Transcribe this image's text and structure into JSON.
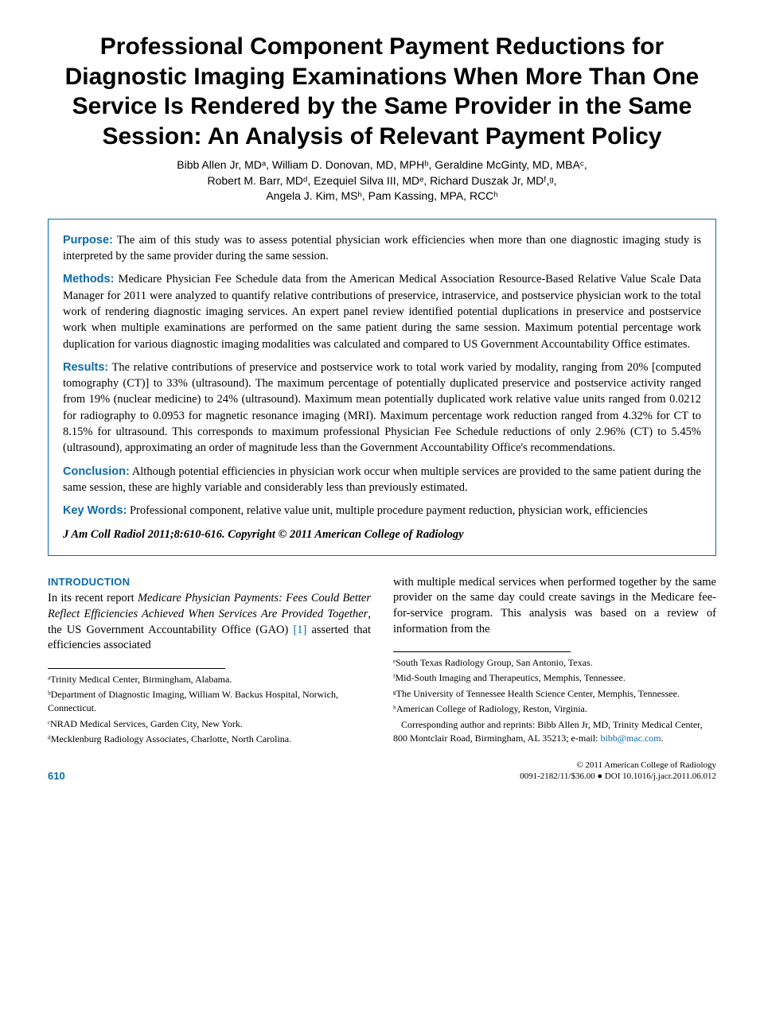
{
  "title": "Professional Component Payment Reductions for Diagnostic Imaging Examinations When More Than One Service Is Rendered by the Same Provider in the Same Session: An Analysis of Relevant Payment Policy",
  "authors_line1": "Bibb Allen Jr, MDᵃ, William D. Donovan, MD, MPHᵇ, Geraldine McGinty, MD, MBAᶜ,",
  "authors_line2": "Robert M. Barr, MDᵈ, Ezequiel Silva III, MDᵉ, Richard Duszak Jr, MDᶠ,ᵍ,",
  "authors_line3": "Angela J. Kim, MSʰ, Pam Kassing, MPA, RCCʰ",
  "abstract": {
    "purpose_label": "Purpose:",
    "purpose": " The aim of this study was to assess potential physician work efficiencies when more than one diagnostic imaging study is interpreted by the same provider during the same session.",
    "methods_label": "Methods:",
    "methods": " Medicare Physician Fee Schedule data from the American Medical Association Resource-Based Relative Value Scale Data Manager for 2011 were analyzed to quantify relative contributions of preservice, intraservice, and postservice physician work to the total work of rendering diagnostic imaging services. An expert panel review identified potential duplications in preservice and postservice work when multiple examinations are performed on the same patient during the same session. Maximum potential percentage work duplication for various diagnostic imaging modalities was calculated and compared to US Government Accountability Office estimates.",
    "results_label": "Results:",
    "results": " The relative contributions of preservice and postservice work to total work varied by modality, ranging from 20% [computed tomography (CT)] to 33% (ultrasound). The maximum percentage of potentially duplicated preservice and postservice activity ranged from 19% (nuclear medicine) to 24% (ultrasound). Maximum mean potentially duplicated work relative value units ranged from 0.0212 for radiography to 0.0953 for magnetic resonance imaging (MRI). Maximum percentage work reduction ranged from 4.32% for CT to 8.15% for ultrasound. This corresponds to maximum professional Physician Fee Schedule reductions of only 2.96% (CT) to 5.45% (ultrasound), approximating an order of magnitude less than the Government Accountability Office's recommendations.",
    "conclusion_label": "Conclusion:",
    "conclusion": " Although potential efficiencies in physician work occur when multiple services are provided to the same patient during the same session, these are highly variable and considerably less than previously estimated.",
    "keywords_label": "Key Words:",
    "keywords": " Professional component, relative value unit, multiple procedure payment reduction, physician work, efficiencies",
    "citation": "J Am Coll Radiol 2011;8:610-616. Copyright © 2011 American College of Radiology"
  },
  "introduction": {
    "heading": "INTRODUCTION",
    "col1_pre": "In its recent report ",
    "col1_ital": "Medicare Physician Payments: Fees Could Better Reflect Efficiencies Achieved When Services Are Provided Together",
    "col1_mid": ", the US Government Accountability Office (GAO) ",
    "col1_ref": "[1]",
    "col1_post": " asserted that efficiencies associated",
    "col2": "with multiple medical services when performed together by the same provider on the same day could create savings in the Medicare fee-for-service program. This analysis was based on a review of information from the"
  },
  "affiliations_left": {
    "a": "ᵃTrinity Medical Center, Birmingham, Alabama.",
    "b": "ᵇDepartment of Diagnostic Imaging, William W. Backus Hospital, Norwich, Connecticut.",
    "c": "ᶜNRAD Medical Services, Garden City, New York.",
    "d": "ᵈMecklenburg Radiology Associates, Charlotte, North Carolina."
  },
  "affiliations_right": {
    "e": "ᵉSouth Texas Radiology Group, San Antonio, Texas.",
    "f": "ᶠMid-South Imaging and Therapeutics, Memphis, Tennessee.",
    "g": "ᵍThe University of Tennessee Health Science Center, Memphis, Tennessee.",
    "h": "ʰAmerican College of Radiology, Reston, Virginia.",
    "corr_pre": "Corresponding author and reprints: Bibb Allen Jr, MD, Trinity Medical Center, 800 Montclair Road, Birmingham, AL 35213; e-mail: ",
    "corr_mail": "bibb@mac.com",
    "corr_post": "."
  },
  "footer": {
    "page": "610",
    "copyright": "© 2011 American College of Radiology",
    "issn_doi": "0091-2182/11/$36.00 ● DOI 10.1016/j.jacr.2011.06.012"
  },
  "colors": {
    "accent": "#0b6aa8",
    "text": "#000000",
    "bg": "#ffffff"
  }
}
